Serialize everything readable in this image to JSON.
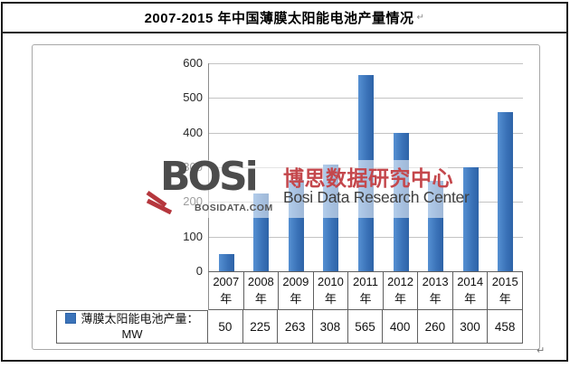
{
  "document": {
    "title": "2007-2015 年中国薄膜太阳能电池产量情况",
    "paragraph_mark": "↵",
    "end_mark": "↵"
  },
  "watermark": {
    "logo": "BOSi",
    "site": "BOSIDATA.COM",
    "cn": "博思数据研究中心",
    "en": "Bosi Data Research Center",
    "red_color": "#c4474c",
    "stripe_color": "#b5373d",
    "gray_color": "#4c4c4c",
    "en_color": "#3f3f3f",
    "site_color": "#565656"
  },
  "chart_data": {
    "type": "bar",
    "title": "2007-2015 年中国薄膜太阳能电池产量情况",
    "categories": [
      "2007",
      "2008",
      "2009",
      "2010",
      "2011",
      "2012",
      "2013",
      "2014",
      "2015"
    ],
    "category_suffix": "年",
    "series": [
      {
        "name": "薄膜太阳能电池产量：",
        "unit": "MW",
        "values": [
          50,
          225,
          263,
          308,
          565,
          400,
          260,
          300,
          458
        ]
      }
    ],
    "ylim": [
      0,
      600
    ],
    "ytick_step": 100,
    "grid": true,
    "legend_position": "data-table-left",
    "data_table_shown": true,
    "bar_color": "#3b73b9",
    "bar_color_light": "#5590d2",
    "bar_color_dark": "#2d63a7"
  }
}
